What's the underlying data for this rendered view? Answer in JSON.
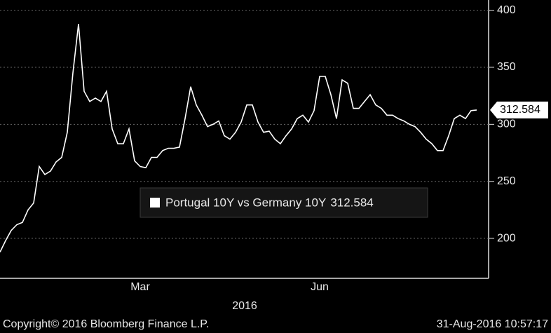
{
  "chart_data": {
    "type": "line",
    "categories": [
      null,
      null,
      null,
      null,
      null,
      null,
      null,
      null,
      null,
      null,
      null,
      null,
      null,
      null,
      null,
      null,
      null,
      null,
      null,
      null,
      null,
      null,
      null,
      null,
      null,
      "Mar",
      null,
      null,
      null,
      null,
      null,
      null,
      null,
      null,
      null,
      null,
      null,
      null,
      null,
      null,
      null,
      null,
      null,
      null,
      null,
      null,
      null,
      null,
      null,
      null,
      null,
      null,
      null,
      null,
      null,
      null,
      null,
      "Jun",
      null,
      null,
      null,
      null,
      null,
      null,
      null,
      null,
      null,
      null,
      null,
      null,
      null,
      null,
      null,
      null,
      null,
      null,
      null,
      null,
      null,
      null,
      null,
      null,
      null,
      null,
      null,
      null
    ],
    "year_label": "2016",
    "series": [
      {
        "name": "Portugal 10Y vs Germany 10Y",
        "color": "#ffffff",
        "values": [
          188,
          198,
          207,
          212,
          214,
          225,
          231,
          263,
          256,
          259,
          267,
          271,
          293,
          345,
          388,
          329,
          320,
          323,
          320,
          329,
          296,
          283,
          283,
          296,
          268,
          263,
          262,
          271,
          271,
          277,
          279,
          279,
          280,
          305,
          333,
          317,
          308,
          298,
          300,
          303,
          290,
          287,
          293,
          302,
          317,
          317,
          302,
          293,
          294,
          287,
          283,
          290,
          296,
          305,
          308,
          302,
          312,
          342,
          342,
          326,
          305,
          339,
          336,
          314,
          314,
          320,
          326,
          317,
          314,
          308,
          308,
          305,
          303,
          300,
          298,
          293,
          287,
          283,
          277,
          277,
          290,
          305,
          308,
          305,
          312,
          312.584
        ]
      }
    ],
    "ylim": [
      165,
      409
    ],
    "yticks": [
      200,
      250,
      300,
      350,
      400
    ],
    "grid": true,
    "source": "Copyright© 2016 Bloomberg Finance L.P.",
    "timestamp": "31-Aug-2016 10:57:17"
  }
}
